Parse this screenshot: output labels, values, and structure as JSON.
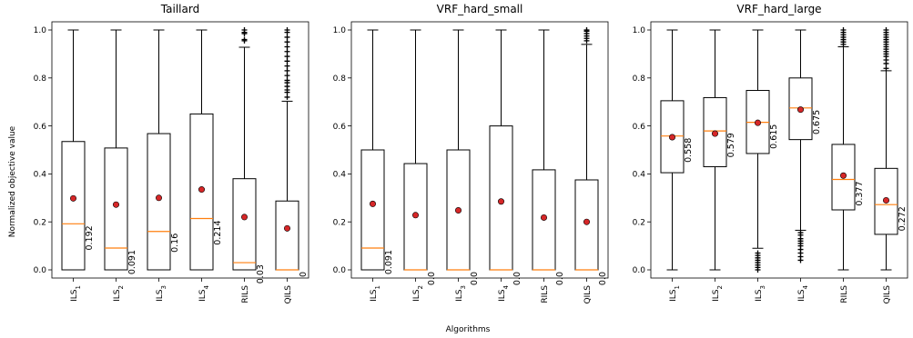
{
  "chart_data": {
    "type": "box",
    "ylabel": "Normalized objective value",
    "xlabel": "Algorithms",
    "ylim": [
      0.0,
      1.0
    ],
    "yticks": [
      "0.0",
      "0.2",
      "0.4",
      "0.6",
      "0.8",
      "1.0"
    ],
    "grid": false,
    "colors": {
      "median": "#ff7f0e",
      "mean_marker": "#d62728",
      "box": "#000000"
    },
    "categories": [
      {
        "base": "ILS",
        "sub": "1"
      },
      {
        "base": "ILS",
        "sub": "2"
      },
      {
        "base": "ILS",
        "sub": "3"
      },
      {
        "base": "ILS",
        "sub": "4"
      },
      {
        "base": "RILS",
        "sub": ""
      },
      {
        "base": "QILS",
        "sub": ""
      }
    ],
    "panels": [
      {
        "title": "Taillard",
        "boxes": [
          {
            "q1": 0.0,
            "median": 0.192,
            "q3": 0.535,
            "whisker_low": 0.0,
            "whisker_high": 1.0,
            "mean": 0.298,
            "median_label": "0.192",
            "outliers": []
          },
          {
            "q1": 0.0,
            "median": 0.091,
            "q3": 0.508,
            "whisker_low": 0.0,
            "whisker_high": 1.0,
            "mean": 0.272,
            "median_label": "0.091",
            "outliers": []
          },
          {
            "q1": 0.0,
            "median": 0.16,
            "q3": 0.568,
            "whisker_low": 0.0,
            "whisker_high": 1.0,
            "mean": 0.3,
            "median_label": "0.16",
            "outliers": []
          },
          {
            "q1": 0.0,
            "median": 0.214,
            "q3": 0.65,
            "whisker_low": 0.0,
            "whisker_high": 1.0,
            "mean": 0.335,
            "median_label": "0.214",
            "outliers": []
          },
          {
            "q1": 0.0,
            "median": 0.03,
            "q3": 0.38,
            "whisker_low": 0.0,
            "whisker_high": 0.928,
            "mean": 0.22,
            "median_label": "0.03",
            "outliers": [
              0.955,
              0.96,
              0.985,
              0.99,
              1.0
            ]
          },
          {
            "q1": 0.0,
            "median": 0.0,
            "q3": 0.287,
            "whisker_low": 0.0,
            "whisker_high": 0.703,
            "mean": 0.173,
            "median_label": "0",
            "outliers": [
              0.72,
              0.74,
              0.75,
              0.765,
              0.78,
              0.79,
              0.81,
              0.83,
              0.85,
              0.87,
              0.89,
              0.91,
              0.93,
              0.95,
              0.97,
              0.99,
              1.0
            ]
          }
        ]
      },
      {
        "title": "VRF_hard_small",
        "boxes": [
          {
            "q1": 0.0,
            "median": 0.091,
            "q3": 0.5,
            "whisker_low": 0.0,
            "whisker_high": 1.0,
            "mean": 0.275,
            "median_label": "0.091",
            "outliers": []
          },
          {
            "q1": 0.0,
            "median": 0.0,
            "q3": 0.443,
            "whisker_low": 0.0,
            "whisker_high": 1.0,
            "mean": 0.228,
            "median_label": "0.0",
            "outliers": []
          },
          {
            "q1": 0.0,
            "median": 0.0,
            "q3": 0.5,
            "whisker_low": 0.0,
            "whisker_high": 1.0,
            "mean": 0.248,
            "median_label": "0.0",
            "outliers": []
          },
          {
            "q1": 0.0,
            "median": 0.0,
            "q3": 0.6,
            "whisker_low": 0.0,
            "whisker_high": 1.0,
            "mean": 0.285,
            "median_label": "0.0",
            "outliers": []
          },
          {
            "q1": 0.0,
            "median": 0.0,
            "q3": 0.417,
            "whisker_low": 0.0,
            "whisker_high": 1.0,
            "mean": 0.218,
            "median_label": "0.0",
            "outliers": []
          },
          {
            "q1": 0.0,
            "median": 0.0,
            "q3": 0.375,
            "whisker_low": 0.0,
            "whisker_high": 0.94,
            "mean": 0.2,
            "median_label": "0.0",
            "outliers": [
              0.955,
              0.965,
              0.975,
              0.985,
              0.995,
              1.0
            ]
          }
        ]
      },
      {
        "title": "VRF_hard_large",
        "boxes": [
          {
            "q1": 0.405,
            "median": 0.558,
            "q3": 0.705,
            "whisker_low": 0.0,
            "whisker_high": 1.0,
            "mean": 0.553,
            "median_label": "0.558",
            "outliers": []
          },
          {
            "q1": 0.43,
            "median": 0.579,
            "q3": 0.718,
            "whisker_low": 0.0,
            "whisker_high": 1.0,
            "mean": 0.568,
            "median_label": "0.579",
            "outliers": []
          },
          {
            "q1": 0.485,
            "median": 0.615,
            "q3": 0.748,
            "whisker_low": 0.09,
            "whisker_high": 1.0,
            "mean": 0.613,
            "median_label": "0.615",
            "outliers": [
              0.0,
              0.01,
              0.02,
              0.03,
              0.04,
              0.05,
              0.06,
              0.07
            ]
          },
          {
            "q1": 0.543,
            "median": 0.675,
            "q3": 0.8,
            "whisker_low": 0.165,
            "whisker_high": 1.0,
            "mean": 0.668,
            "median_label": "0.675",
            "outliers": [
              0.04,
              0.055,
              0.07,
              0.085,
              0.1,
              0.11,
              0.12,
              0.13,
              0.145,
              0.155
            ]
          },
          {
            "q1": 0.25,
            "median": 0.377,
            "q3": 0.523,
            "whisker_low": 0.0,
            "whisker_high": 0.93,
            "mean": 0.393,
            "median_label": "0.377",
            "outliers": [
              0.94,
              0.95,
              0.96,
              0.97,
              0.98,
              0.99,
              1.0
            ]
          },
          {
            "q1": 0.148,
            "median": 0.272,
            "q3": 0.423,
            "whisker_low": 0.0,
            "whisker_high": 0.83,
            "mean": 0.29,
            "median_label": "0.272",
            "outliers": [
              0.84,
              0.86,
              0.875,
              0.89,
              0.9,
              0.91,
              0.92,
              0.93,
              0.94,
              0.95,
              0.96,
              0.97,
              0.98,
              0.99,
              1.0
            ]
          }
        ]
      }
    ]
  }
}
